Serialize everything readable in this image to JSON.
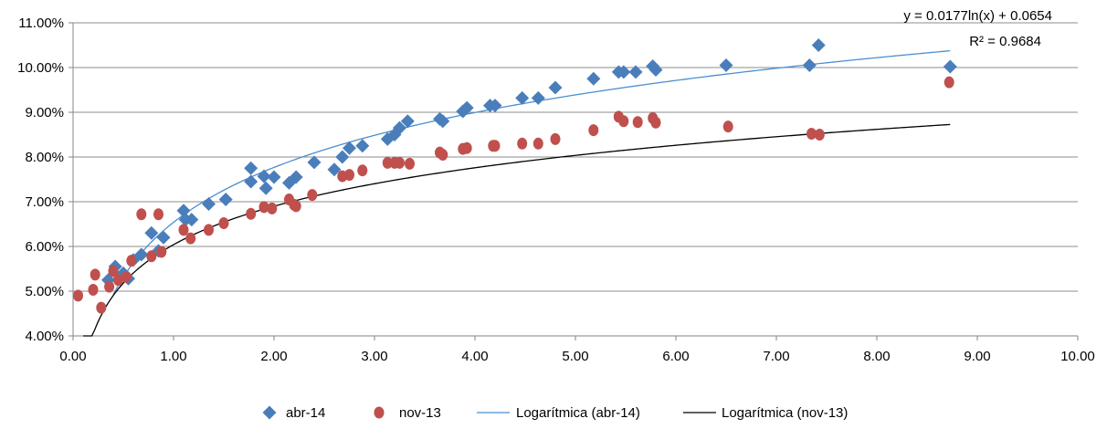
{
  "chart_data": {
    "type": "scatter",
    "xlim": [
      0,
      10
    ],
    "ylim": [
      0.04,
      0.11
    ],
    "x_ticks": [
      0,
      1,
      2,
      3,
      4,
      5,
      6,
      7,
      8,
      9,
      10
    ],
    "y_ticks": [
      0.04,
      0.05,
      0.06,
      0.07,
      0.08,
      0.09,
      0.1,
      0.11
    ],
    "x_tick_labels": [
      "0.00",
      "1.00",
      "2.00",
      "3.00",
      "4.00",
      "5.00",
      "6.00",
      "7.00",
      "8.00",
      "9.00",
      "10.00"
    ],
    "y_tick_labels": [
      "4.00%",
      "5.00%",
      "6.00%",
      "7.00%",
      "8.00%",
      "9.00%",
      "10.00%",
      "11.00%"
    ],
    "grid": "horizontal",
    "legend_position": "bottom",
    "series": [
      {
        "name": "abr-14",
        "marker": "diamond",
        "color": "#4A7EBB",
        "points": [
          [
            0.35,
            0.0525
          ],
          [
            0.42,
            0.0555
          ],
          [
            0.5,
            0.054
          ],
          [
            0.55,
            0.0528
          ],
          [
            0.6,
            0.057
          ],
          [
            0.68,
            0.0582
          ],
          [
            0.78,
            0.063
          ],
          [
            0.85,
            0.059
          ],
          [
            0.9,
            0.062
          ],
          [
            1.1,
            0.068
          ],
          [
            1.12,
            0.066
          ],
          [
            1.18,
            0.066
          ],
          [
            1.35,
            0.0695
          ],
          [
            1.52,
            0.0705
          ],
          [
            1.77,
            0.0775
          ],
          [
            1.77,
            0.0745
          ],
          [
            1.9,
            0.0757
          ],
          [
            1.92,
            0.073
          ],
          [
            2.0,
            0.0755
          ],
          [
            2.15,
            0.0742
          ],
          [
            2.22,
            0.0755
          ],
          [
            2.4,
            0.0788
          ],
          [
            2.6,
            0.0772
          ],
          [
            2.68,
            0.08
          ],
          [
            2.75,
            0.082
          ],
          [
            2.88,
            0.0825
          ],
          [
            3.13,
            0.084
          ],
          [
            3.2,
            0.085
          ],
          [
            3.25,
            0.0865
          ],
          [
            3.33,
            0.088
          ],
          [
            3.65,
            0.0885
          ],
          [
            3.68,
            0.088
          ],
          [
            3.88,
            0.0902
          ],
          [
            3.92,
            0.091
          ],
          [
            4.15,
            0.0915
          ],
          [
            4.2,
            0.0915
          ],
          [
            4.47,
            0.0932
          ],
          [
            4.63,
            0.0932
          ],
          [
            4.8,
            0.0955
          ],
          [
            5.18,
            0.0975
          ],
          [
            5.43,
            0.099
          ],
          [
            5.48,
            0.099
          ],
          [
            5.6,
            0.099
          ],
          [
            5.77,
            0.1003
          ],
          [
            5.8,
            0.0995
          ],
          [
            6.5,
            0.1005
          ],
          [
            7.33,
            0.1005
          ],
          [
            7.42,
            0.105
          ],
          [
            8.73,
            0.1002
          ]
        ]
      },
      {
        "name": "nov-13",
        "marker": "circle",
        "color": "#C0504D",
        "points": [
          [
            0.05,
            0.049
          ],
          [
            0.2,
            0.0503
          ],
          [
            0.22,
            0.0537
          ],
          [
            0.28,
            0.0463
          ],
          [
            0.36,
            0.051
          ],
          [
            0.4,
            0.0545
          ],
          [
            0.45,
            0.0525
          ],
          [
            0.53,
            0.0532
          ],
          [
            0.58,
            0.0568
          ],
          [
            0.68,
            0.0672
          ],
          [
            0.78,
            0.0578
          ],
          [
            0.85,
            0.0672
          ],
          [
            0.88,
            0.0588
          ],
          [
            1.1,
            0.0637
          ],
          [
            1.17,
            0.0618
          ],
          [
            1.35,
            0.0637
          ],
          [
            1.5,
            0.0652
          ],
          [
            1.77,
            0.0673
          ],
          [
            1.9,
            0.0688
          ],
          [
            1.98,
            0.0685
          ],
          [
            2.15,
            0.0705
          ],
          [
            2.2,
            0.0693
          ],
          [
            2.22,
            0.069
          ],
          [
            2.38,
            0.0715
          ],
          [
            2.68,
            0.0757
          ],
          [
            2.75,
            0.076
          ],
          [
            2.88,
            0.077
          ],
          [
            3.13,
            0.0787
          ],
          [
            3.2,
            0.0787
          ],
          [
            3.25,
            0.0787
          ],
          [
            3.35,
            0.0785
          ],
          [
            3.65,
            0.081
          ],
          [
            3.68,
            0.0805
          ],
          [
            3.88,
            0.0818
          ],
          [
            3.92,
            0.082
          ],
          [
            4.18,
            0.0825
          ],
          [
            4.2,
            0.0825
          ],
          [
            4.47,
            0.083
          ],
          [
            4.63,
            0.083
          ],
          [
            4.8,
            0.084
          ],
          [
            5.18,
            0.086
          ],
          [
            5.43,
            0.089
          ],
          [
            5.48,
            0.088
          ],
          [
            5.62,
            0.0878
          ],
          [
            5.77,
            0.0887
          ],
          [
            5.8,
            0.0877
          ],
          [
            6.52,
            0.0868
          ],
          [
            7.35,
            0.0852
          ],
          [
            7.43,
            0.085
          ],
          [
            8.72,
            0.0967
          ]
        ]
      }
    ],
    "trendlines": [
      {
        "name": "Logarítmica (abr-14)",
        "type": "logarithmic",
        "a": 0.0177,
        "b": 0.0654,
        "x_range": [
          0.4,
          8.73
        ],
        "color": "#4A8FCF"
      },
      {
        "name": "Logarítmica (nov-13)",
        "type": "logarithmic",
        "a": 0.0124,
        "b": 0.0604,
        "x_range": [
          0.1,
          8.73
        ],
        "color": "#000000"
      }
    ],
    "annotations": {
      "equation": "y = 0.0177ln(x) + 0.0654",
      "r_squared": "R² = 0.9684"
    }
  }
}
